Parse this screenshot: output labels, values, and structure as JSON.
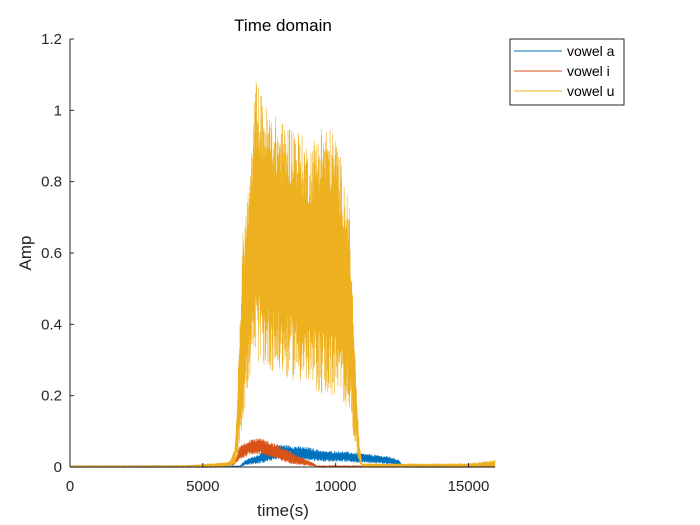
{
  "chart_data": {
    "type": "line",
    "title": "Time domain",
    "xlabel": "time(s)",
    "ylabel": "Amp",
    "xlim": [
      0,
      16000
    ],
    "ylim": [
      0,
      1.2
    ],
    "xticks": [
      0,
      5000,
      10000,
      15000
    ],
    "xtick_labels": [
      "0",
      "5000",
      "10000",
      "15000"
    ],
    "yticks": [
      0,
      0.2,
      0.4,
      0.6,
      0.8,
      1,
      1.2
    ],
    "ytick_labels": [
      "0",
      "0.2",
      "0.4",
      "0.6",
      "0.8",
      "1",
      "1.2"
    ],
    "grid": false,
    "legend_position": "top-right outside",
    "series": [
      {
        "name": "vowel a",
        "color": "#0072BD",
        "envelope": {
          "x": [
            0,
            5000,
            6400,
            6600,
            7200,
            7800,
            8400,
            9000,
            9600,
            10200,
            10800,
            11400,
            12000,
            12400,
            12500,
            16000
          ],
          "upper": [
            0.002,
            0.003,
            0.004,
            0.02,
            0.04,
            0.065,
            0.06,
            0.055,
            0.045,
            0.045,
            0.04,
            0.035,
            0.03,
            0.02,
            0.003,
            0.002
          ],
          "lower": [
            0,
            0,
            0,
            0.005,
            0.01,
            0.02,
            0.02,
            0.018,
            0.015,
            0.015,
            0.012,
            0.01,
            0.008,
            0.005,
            0,
            0
          ]
        }
      },
      {
        "name": "vowel i",
        "color": "#D95319",
        "envelope": {
          "x": [
            0,
            5500,
            6200,
            6400,
            6800,
            7200,
            7600,
            8000,
            8400,
            8800,
            9200,
            9300,
            16000
          ],
          "upper": [
            0.002,
            0.003,
            0.02,
            0.06,
            0.08,
            0.08,
            0.07,
            0.055,
            0.04,
            0.025,
            0.01,
            0.003,
            0.002
          ],
          "lower": [
            0,
            0,
            0.005,
            0.02,
            0.035,
            0.035,
            0.025,
            0.015,
            0.008,
            0.004,
            0.002,
            0,
            0
          ]
        }
      },
      {
        "name": "vowel u",
        "color": "#EDB120",
        "envelope": {
          "x": [
            0,
            4500,
            6000,
            6200,
            6300,
            6500,
            6800,
            7000,
            7200,
            7500,
            8000,
            8500,
            9000,
            9500,
            10000,
            10500,
            10800,
            10900,
            11000,
            15000,
            16000
          ],
          "upper": [
            0.003,
            0.005,
            0.015,
            0.05,
            0.2,
            0.65,
            0.85,
            1.1,
            1.05,
            1.0,
            0.97,
            0.96,
            0.9,
            0.97,
            0.94,
            0.75,
            0.2,
            0.06,
            0.01,
            0.01,
            0.02
          ],
          "lower": [
            0,
            0,
            0,
            0.005,
            0.02,
            0.12,
            0.26,
            0.3,
            0.28,
            0.27,
            0.25,
            0.24,
            0.22,
            0.2,
            0.19,
            0.16,
            0.03,
            0.01,
            0,
            0,
            0
          ]
        }
      }
    ]
  }
}
